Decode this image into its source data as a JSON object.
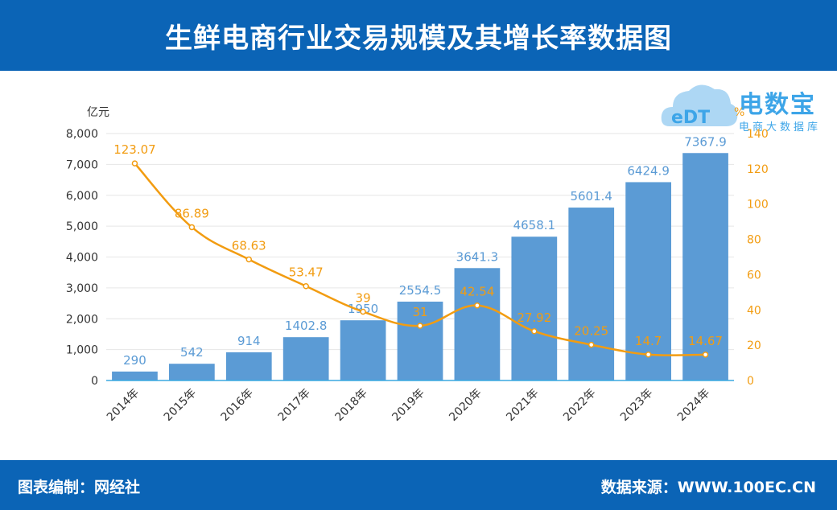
{
  "header": {
    "title": "生鲜电商行业交易规模及其增长率数据图"
  },
  "footer": {
    "left": "图表编制：网经社",
    "right": "数据来源：WWW.100EC.CN"
  },
  "logo": {
    "badge": "eDT",
    "name": "电数宝",
    "sub": "电商大数据库"
  },
  "colors": {
    "header_bg": "#0b64b6",
    "bar": "#5b9bd5",
    "line": "#f29c11"
  },
  "chart_data": {
    "type": "bar",
    "categories": [
      "2014年",
      "2015年",
      "2016年",
      "2017年",
      "2018年",
      "2019年",
      "2020年",
      "2021年",
      "2022年",
      "2023年",
      "2024年"
    ],
    "series": [
      {
        "type": "bar",
        "axis": "left",
        "values": [
          290,
          542,
          914,
          1402.8,
          1950,
          2554.5,
          3641.3,
          4658.1,
          5601.4,
          6424.9,
          7367.9
        ]
      },
      {
        "type": "line",
        "axis": "right",
        "values": [
          123.07,
          86.89,
          68.63,
          53.47,
          39,
          31,
          42.54,
          27.92,
          20.25,
          14.7,
          14.67
        ]
      }
    ],
    "ylabel": "亿元",
    "y2label": "%",
    "ylim": [
      0,
      8000
    ],
    "y2lim": [
      0,
      140
    ],
    "yticks": [
      "0",
      "1,000",
      "2,000",
      "3,000",
      "4,000",
      "5,000",
      "6,000",
      "7,000",
      "8,000"
    ],
    "y2ticks": [
      "0",
      "20",
      "40",
      "60",
      "80",
      "100",
      "120",
      "140"
    ],
    "grid": true
  }
}
